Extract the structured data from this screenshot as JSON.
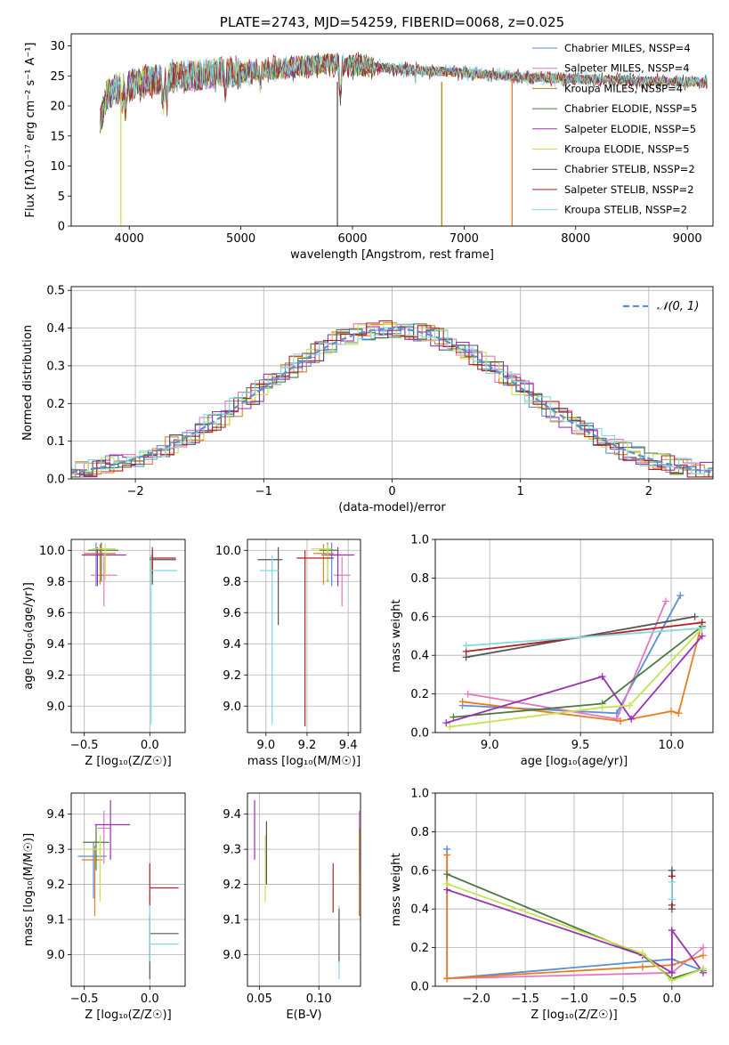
{
  "chart_data": [
    {
      "type": "line",
      "title": "PLATE=2743, MJD=54259, FIBERID=0068, z=0.025",
      "xlabel": "wavelength [Angstrom, rest frame]",
      "ylabel": "Flux [fλ10⁻¹⁷ erg cm⁻² s⁻¹ A⁻¹]",
      "xlim": [
        3480,
        9230
      ],
      "ylim": [
        0,
        32
      ],
      "xticks": [
        4000,
        5000,
        6000,
        7000,
        8000,
        9000
      ],
      "yticks": [
        0,
        5,
        10,
        15,
        20,
        25,
        30
      ],
      "legend_position": "top-right",
      "series": [
        {
          "name": "Chabrier MILES, N_SSP=4",
          "color": "#5b8fd6"
        },
        {
          "name": "Salpeter MILES, N_SSP=4",
          "color": "#e377c2"
        },
        {
          "name": "Kroupa MILES, N_SSP=4",
          "color": "#b8860b"
        },
        {
          "name": "Chabrier ELODIE, N_SSP=5",
          "color": "#4a7c3f"
        },
        {
          "name": "Salpeter ELODIE, N_SSP=5",
          "color": "#9b30b0"
        },
        {
          "name": "Kroupa ELODIE, N_SSP=5",
          "color": "#c6e34f"
        },
        {
          "name": "Chabrier STELIB, N_SSP=2",
          "color": "#555555"
        },
        {
          "name": "Salpeter STELIB, N_SSP=2",
          "color": "#b22222"
        },
        {
          "name": "Kroupa STELIB, N_SSP=2",
          "color": "#7fdbe0"
        }
      ],
      "continuum": [
        [
          3740,
          17
        ],
        [
          3800,
          22
        ],
        [
          3900,
          23
        ],
        [
          4000,
          23.5
        ],
        [
          4100,
          24
        ],
        [
          4300,
          24.5
        ],
        [
          4500,
          25
        ],
        [
          4800,
          25.5
        ],
        [
          5000,
          25.5
        ],
        [
          5500,
          26.5
        ],
        [
          5800,
          27
        ],
        [
          6000,
          26.8
        ],
        [
          6500,
          26
        ],
        [
          7000,
          25.5
        ],
        [
          7500,
          24.8
        ],
        [
          8000,
          24.5
        ],
        [
          8500,
          24.2
        ],
        [
          8900,
          24
        ],
        [
          9180,
          24
        ]
      ],
      "absorption_lines": [
        [
          3934,
          20
        ],
        [
          3969,
          19
        ],
        [
          4102,
          22
        ],
        [
          4305,
          20
        ],
        [
          4340,
          21
        ],
        [
          4861,
          22
        ],
        [
          5175,
          23
        ],
        [
          5892,
          22
        ],
        [
          6563,
          24.5
        ]
      ],
      "drop_features": [
        [
          3925,
          0
        ],
        [
          5865,
          0
        ],
        [
          6800,
          0
        ],
        [
          7430,
          0
        ]
      ]
    },
    {
      "type": "histogram",
      "xlabel": "(data-model)/error",
      "ylabel": "Normed distribution",
      "xlim": [
        -2.5,
        2.5
      ],
      "ylim": [
        0,
        0.51
      ],
      "xticks": [
        -2,
        -1,
        0,
        1,
        2
      ],
      "yticks": [
        0.0,
        0.1,
        0.2,
        0.3,
        0.4,
        0.5
      ],
      "grid": true,
      "legend_position": "top-right",
      "reference_label": "𝒩(0, 1)",
      "bin_width": 0.1,
      "colors": [
        "#5b8fd6",
        "#e377c2",
        "#e67e22",
        "#4a7c3f",
        "#9b30b0",
        "#c6e34f",
        "#555555",
        "#b22222",
        "#7fdbe0"
      ]
    },
    {
      "type": "scatter",
      "name": "age-vs-Z",
      "xlabel": "Z [log₁₀(Z/Z☉)]",
      "ylabel": "age  [log₁₀(age/yr)]",
      "xlim": [
        -0.6,
        0.27
      ],
      "ylim": [
        8.83,
        10.07
      ],
      "xticks": [
        -0.5,
        0.0
      ],
      "xtick_labels": [
        "−0.5",
        "0.0"
      ],
      "yticks": [
        9.0,
        9.2,
        9.4,
        9.6,
        9.8,
        10.0
      ],
      "grid": true,
      "points": [
        {
          "x": -0.41,
          "y": 9.97,
          "xerr": [
            0.1,
            0.1
          ],
          "yerr": [
            0.2,
            0.08
          ],
          "color": "#5b8fd6"
        },
        {
          "x": -0.35,
          "y": 9.84,
          "xerr": [
            0.1,
            0.1
          ],
          "yerr": [
            0.2,
            0.12
          ],
          "color": "#e377c2"
        },
        {
          "x": -0.38,
          "y": 9.98,
          "xerr": [
            0.12,
            0.12
          ],
          "yerr": [
            0.2,
            0.06
          ],
          "color": "#e67e22"
        },
        {
          "x": -0.37,
          "y": 10.0,
          "xerr": [
            0.1,
            0.13
          ],
          "yerr": [
            0.2,
            0.05
          ],
          "color": "#4a7c3f"
        },
        {
          "x": -0.4,
          "y": 9.97,
          "xerr": [
            0.12,
            0.22
          ],
          "yerr": [
            0.2,
            0.05
          ],
          "color": "#9b30b0"
        },
        {
          "x": -0.34,
          "y": 10.01,
          "xerr": [
            0.1,
            0.08
          ],
          "yerr": [
            0.2,
            0.03
          ],
          "color": "#c6e34f"
        },
        {
          "x": 0.02,
          "y": 9.94,
          "xerr": [
            0.02,
            0.18
          ],
          "yerr": [
            0.16,
            0.08
          ],
          "color": "#555555"
        },
        {
          "x": 0.02,
          "y": 9.95,
          "xerr": [
            0.02,
            0.18
          ],
          "yerr": [
            0.1,
            0.05
          ],
          "color": "#b22222"
        },
        {
          "x": 0.01,
          "y": 9.87,
          "xerr": [
            0.01,
            0.2
          ],
          "yerr": [
            0.99,
            0.1
          ],
          "color": "#7fdbe0"
        }
      ]
    },
    {
      "type": "scatter",
      "name": "age-vs-mass",
      "xlabel": "mass [log₁₀(M/M☉)]",
      "ylabel": "",
      "xlim": [
        8.91,
        9.46
      ],
      "ylim": [
        8.83,
        10.07
      ],
      "xticks": [
        9.0,
        9.2,
        9.4
      ],
      "yticks": [
        9.0,
        9.2,
        9.4,
        9.6,
        9.8,
        10.0
      ],
      "grid": true,
      "points": [
        {
          "x": 9.32,
          "y": 9.97,
          "xerr": [
            0.05,
            0.04
          ],
          "yerr": [
            0.2,
            0.08
          ],
          "color": "#5b8fd6"
        },
        {
          "x": 9.37,
          "y": 9.84,
          "xerr": [
            0.04,
            0.04
          ],
          "yerr": [
            0.2,
            0.12
          ],
          "color": "#e377c2"
        },
        {
          "x": 9.28,
          "y": 9.98,
          "xerr": [
            0.05,
            0.05
          ],
          "yerr": [
            0.2,
            0.06
          ],
          "color": "#e67e22"
        },
        {
          "x": 9.3,
          "y": 10.0,
          "xerr": [
            0.04,
            0.05
          ],
          "yerr": [
            0.2,
            0.05
          ],
          "color": "#4a7c3f"
        },
        {
          "x": 9.35,
          "y": 9.97,
          "xerr": [
            0.06,
            0.08
          ],
          "yerr": [
            0.2,
            0.05
          ],
          "color": "#9b30b0"
        },
        {
          "x": 9.3,
          "y": 10.01,
          "xerr": [
            0.08,
            0.02
          ],
          "yerr": [
            0.2,
            0.03
          ],
          "color": "#c6e34f"
        },
        {
          "x": 9.06,
          "y": 9.94,
          "xerr": [
            0.1,
            0.02
          ],
          "yerr": [
            0.42,
            0.08
          ],
          "color": "#555555"
        },
        {
          "x": 9.19,
          "y": 9.95,
          "xerr": [
            0.04,
            0.14
          ],
          "yerr": [
            1.08,
            0.05
          ],
          "color": "#b22222"
        },
        {
          "x": 9.03,
          "y": 9.87,
          "xerr": [
            0.06,
            0.03
          ],
          "yerr": [
            0.99,
            0.1
          ],
          "color": "#7fdbe0"
        }
      ]
    },
    {
      "type": "line",
      "name": "mass-weight-vs-age",
      "xlabel": "age  [log₁₀(age/yr)]",
      "ylabel": "mass weight",
      "xlim": [
        8.7,
        10.23
      ],
      "ylim": [
        0,
        1.0
      ],
      "xticks": [
        9.0,
        9.5,
        10.0
      ],
      "yticks": [
        0.0,
        0.2,
        0.4,
        0.6,
        0.8,
        1.0
      ],
      "grid": true,
      "series": [
        {
          "color": "#5b8fd6",
          "x": [
            8.85,
            9.7,
            10.05
          ],
          "y": [
            0.14,
            0.1,
            0.71
          ]
        },
        {
          "color": "#e377c2",
          "x": [
            8.88,
            9.7,
            9.97
          ],
          "y": [
            0.2,
            0.07,
            0.68
          ]
        },
        {
          "color": "#e67e22",
          "x": [
            8.85,
            9.72,
            10.0,
            10.04,
            10.17
          ],
          "y": [
            0.16,
            0.06,
            0.11,
            0.1,
            0.57
          ]
        },
        {
          "color": "#4a7c3f",
          "x": [
            8.8,
            9.62,
            10.17
          ],
          "y": [
            0.08,
            0.15,
            0.55
          ]
        },
        {
          "color": "#9b30b0",
          "x": [
            8.76,
            9.62,
            9.78,
            10.17
          ],
          "y": [
            0.05,
            0.29,
            0.07,
            0.5
          ]
        },
        {
          "color": "#c6e34f",
          "x": [
            8.78,
            9.62,
            9.77,
            10.17
          ],
          "y": [
            0.03,
            0.13,
            0.14,
            0.54
          ]
        },
        {
          "color": "#555555",
          "x": [
            8.87,
            10.13
          ],
          "y": [
            0.39,
            0.6
          ]
        },
        {
          "color": "#b22222",
          "x": [
            8.87,
            10.17
          ],
          "y": [
            0.42,
            0.57
          ]
        },
        {
          "color": "#7fdbe0",
          "x": [
            8.87,
            10.17
          ],
          "y": [
            0.45,
            0.54
          ]
        }
      ]
    },
    {
      "type": "scatter",
      "name": "mass-vs-Z",
      "xlabel": "Z [log₁₀(Z/Z☉)]",
      "ylabel": "mass [log₁₀(M/M☉)]",
      "xlim": [
        -0.6,
        0.27
      ],
      "ylim": [
        8.91,
        9.46
      ],
      "xticks": [
        -0.5,
        0.0
      ],
      "xtick_labels": [
        "−0.5",
        "0.0"
      ],
      "yticks": [
        9.0,
        9.1,
        9.2,
        9.3,
        9.4
      ],
      "grid": true,
      "points": [
        {
          "x": -0.43,
          "y": 9.28,
          "xerr": [
            0.12,
            0.1
          ],
          "yerr": [
            0.12,
            0.04
          ],
          "color": "#5b8fd6"
        },
        {
          "x": -0.35,
          "y": 9.36,
          "xerr": [
            0.05,
            0.05
          ],
          "yerr": [
            0.1,
            0.05
          ],
          "color": "#e377c2"
        },
        {
          "x": -0.42,
          "y": 9.27,
          "xerr": [
            0.1,
            0.06
          ],
          "yerr": [
            0.16,
            0.04
          ],
          "color": "#e67e22"
        },
        {
          "x": -0.41,
          "y": 9.32,
          "xerr": [
            0.1,
            0.1
          ],
          "yerr": [
            0.08,
            0.05
          ],
          "color": "#4a7c3f"
        },
        {
          "x": -0.3,
          "y": 9.37,
          "xerr": [
            0.12,
            0.15
          ],
          "yerr": [
            0.1,
            0.07
          ],
          "color": "#9b30b0"
        },
        {
          "x": -0.38,
          "y": 9.3,
          "xerr": [
            0.13,
            0.04
          ],
          "yerr": [
            0.15,
            0.04
          ],
          "color": "#c6e34f"
        },
        {
          "x": 0.0,
          "y": 9.06,
          "xerr": [
            0.0,
            0.22
          ],
          "yerr": [
            0.13,
            0.05
          ],
          "color": "#555555"
        },
        {
          "x": 0.0,
          "y": 9.19,
          "xerr": [
            0.0,
            0.22
          ],
          "yerr": [
            0.05,
            0.07
          ],
          "color": "#b22222"
        },
        {
          "x": 0.0,
          "y": 9.03,
          "xerr": [
            0.0,
            0.22
          ],
          "yerr": [
            0.05,
            0.11
          ],
          "color": "#7fdbe0"
        }
      ]
    },
    {
      "type": "scatter",
      "name": "mass-vs-ebv",
      "xlabel": "E(B-V)",
      "ylabel": "",
      "xlim": [
        0.04,
        0.135
      ],
      "ylim": [
        8.91,
        9.46
      ],
      "xticks": [
        0.05,
        0.1
      ],
      "xtick_labels": [
        "0.05",
        "0.10"
      ],
      "yticks": [
        9.0,
        9.1,
        9.2,
        9.3,
        9.4
      ],
      "grid": true,
      "points": [
        {
          "x": 0.046,
          "y": 9.37,
          "yerr": [
            0.1,
            0.07
          ],
          "color": "#9b30b0"
        },
        {
          "x": 0.055,
          "y": 9.25,
          "yerr": [
            0.1,
            0.09
          ],
          "color": "#c6e34f"
        },
        {
          "x": 0.056,
          "y": 9.3,
          "yerr": [
            0.1,
            0.08
          ],
          "color": "#555555"
        },
        {
          "x": 0.112,
          "y": 9.19,
          "yerr": [
            0.07,
            0.07
          ],
          "color": "#b22222"
        },
        {
          "x": 0.117,
          "y": 9.06,
          "yerr": [
            0.13,
            0.08
          ],
          "color": "#7fdbe0"
        },
        {
          "x": 0.117,
          "y": 9.03,
          "yerr": [
            0.05,
            0.1
          ],
          "color": "#555555"
        },
        {
          "x": 0.134,
          "y": 9.32,
          "yerr": [
            0.08,
            0.09
          ],
          "color": "#e377c2"
        },
        {
          "x": 0.134,
          "y": 9.27,
          "yerr": [
            0.16,
            0.09
          ],
          "color": "#e67e22"
        }
      ]
    },
    {
      "type": "line",
      "name": "mass-weight-vs-Z",
      "xlabel": "Z [log₁₀(Z/Z☉)]",
      "ylabel": "mass weight",
      "xlim": [
        -2.42,
        0.42
      ],
      "ylim": [
        0,
        1.0
      ],
      "xticks": [
        -2.0,
        -1.5,
        -1.0,
        -0.5,
        0.0
      ],
      "xtick_labels": [
        "−2.0",
        "−1.5",
        "−1.0",
        "−0.5",
        "0.0"
      ],
      "yticks": [
        0.0,
        0.2,
        0.4,
        0.6,
        0.8,
        1.0
      ],
      "grid": true,
      "series": [
        {
          "color": "#5b8fd6",
          "x": [
            -2.3,
            -2.3,
            0.0,
            0.32
          ],
          "y": [
            0.71,
            0.04,
            0.14,
            0.08
          ]
        },
        {
          "color": "#e377c2",
          "x": [
            -2.3,
            0.0,
            0.32
          ],
          "y": [
            0.04,
            0.07,
            0.2
          ]
        },
        {
          "color": "#e67e22",
          "x": [
            -2.3,
            -2.3,
            -0.3,
            0.0,
            0.32
          ],
          "y": [
            0.68,
            0.04,
            0.1,
            0.11,
            0.16
          ]
        },
        {
          "color": "#4a7c3f",
          "x": [
            -2.3,
            -0.3,
            0.0,
            0.32
          ],
          "y": [
            0.58,
            0.16,
            0.04,
            0.09
          ]
        },
        {
          "color": "#9b30b0",
          "x": [
            -2.3,
            -0.3,
            0.0,
            0.0,
            0.32
          ],
          "y": [
            0.5,
            0.16,
            0.07,
            0.29,
            0.07
          ]
        },
        {
          "color": "#c6e34f",
          "x": [
            -2.3,
            -0.3,
            0.0,
            0.32
          ],
          "y": [
            0.53,
            0.17,
            0.03,
            0.09
          ]
        },
        {
          "color": "#555555",
          "x": [
            0.0,
            0.0
          ],
          "y": [
            0.6,
            0.4
          ]
        },
        {
          "color": "#b22222",
          "x": [
            0.0,
            0.0
          ],
          "y": [
            0.57,
            0.42
          ]
        },
        {
          "color": "#7fdbe0",
          "x": [
            0.0,
            0.0
          ],
          "y": [
            0.54,
            0.45
          ]
        }
      ]
    }
  ]
}
